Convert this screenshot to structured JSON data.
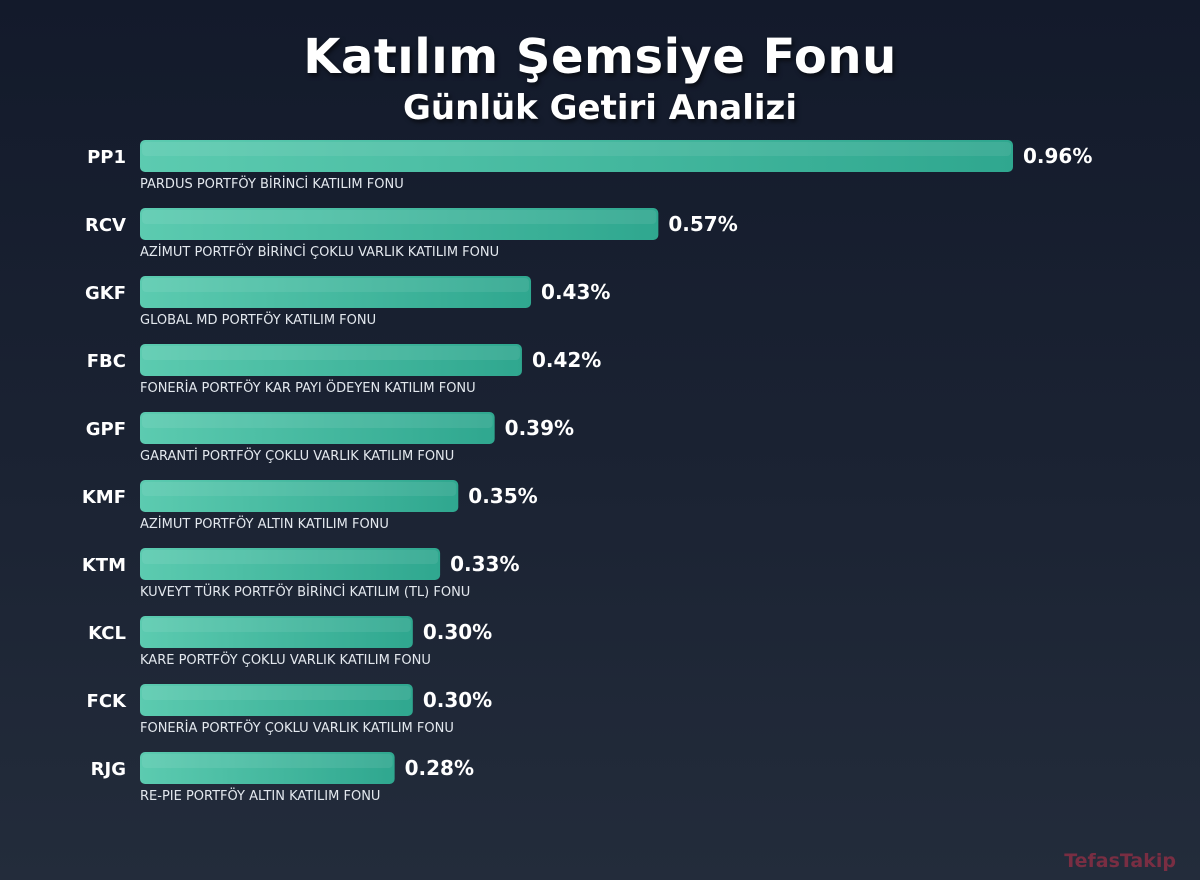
{
  "header": {
    "title": "Katılım Şemsiye Fonu",
    "subtitle": "Günlük Getiri Analizi"
  },
  "watermark": "TefasTakip",
  "colors": {
    "bar_light": "#5ccbb0",
    "bar_dark": "#2fa78f",
    "background_top": "#131a2b",
    "background_bottom": "#232c3b"
  },
  "chart_data": {
    "type": "bar",
    "orientation": "horizontal",
    "title": "Katılım Şemsiye Fonu",
    "subtitle": "Günlük Getiri Analizi",
    "value_suffix": "%",
    "xlim": [
      0,
      0.96
    ],
    "grid": false,
    "legend": "none",
    "categories": [
      "PP1",
      "RCV",
      "GKF",
      "FBC",
      "GPF",
      "KMF",
      "KTM",
      "KCL",
      "FCK",
      "RJG"
    ],
    "fund_names": [
      "PARDUS PORTFÖY BİRİNCİ KATILIM FONU",
      "AZİMUT PORTFÖY BİRİNCİ ÇOKLU VARLIK KATILIM FONU",
      "GLOBAL MD PORTFÖY KATILIM FONU",
      "FONERİA PORTFÖY KAR PAYI ÖDEYEN KATILIM FONU",
      "GARANTİ PORTFÖY ÇOKLU VARLIK KATILIM FONU",
      "AZİMUT PORTFÖY ALTIN KATILIM FONU",
      "KUVEYT TÜRK PORTFÖY BİRİNCİ KATILIM (TL) FONU",
      "KARE PORTFÖY ÇOKLU VARLIK KATILIM FONU",
      "FONERİA PORTFÖY ÇOKLU VARLIK KATILIM FONU",
      "RE-PIE PORTFÖY ALTIN KATILIM FONU"
    ],
    "values": [
      0.96,
      0.57,
      0.43,
      0.42,
      0.39,
      0.35,
      0.33,
      0.3,
      0.3,
      0.28
    ],
    "value_labels": [
      "0.96%",
      "0.57%",
      "0.43%",
      "0.42%",
      "0.39%",
      "0.35%",
      "0.33%",
      "0.30%",
      "0.30%",
      "0.28%"
    ]
  }
}
